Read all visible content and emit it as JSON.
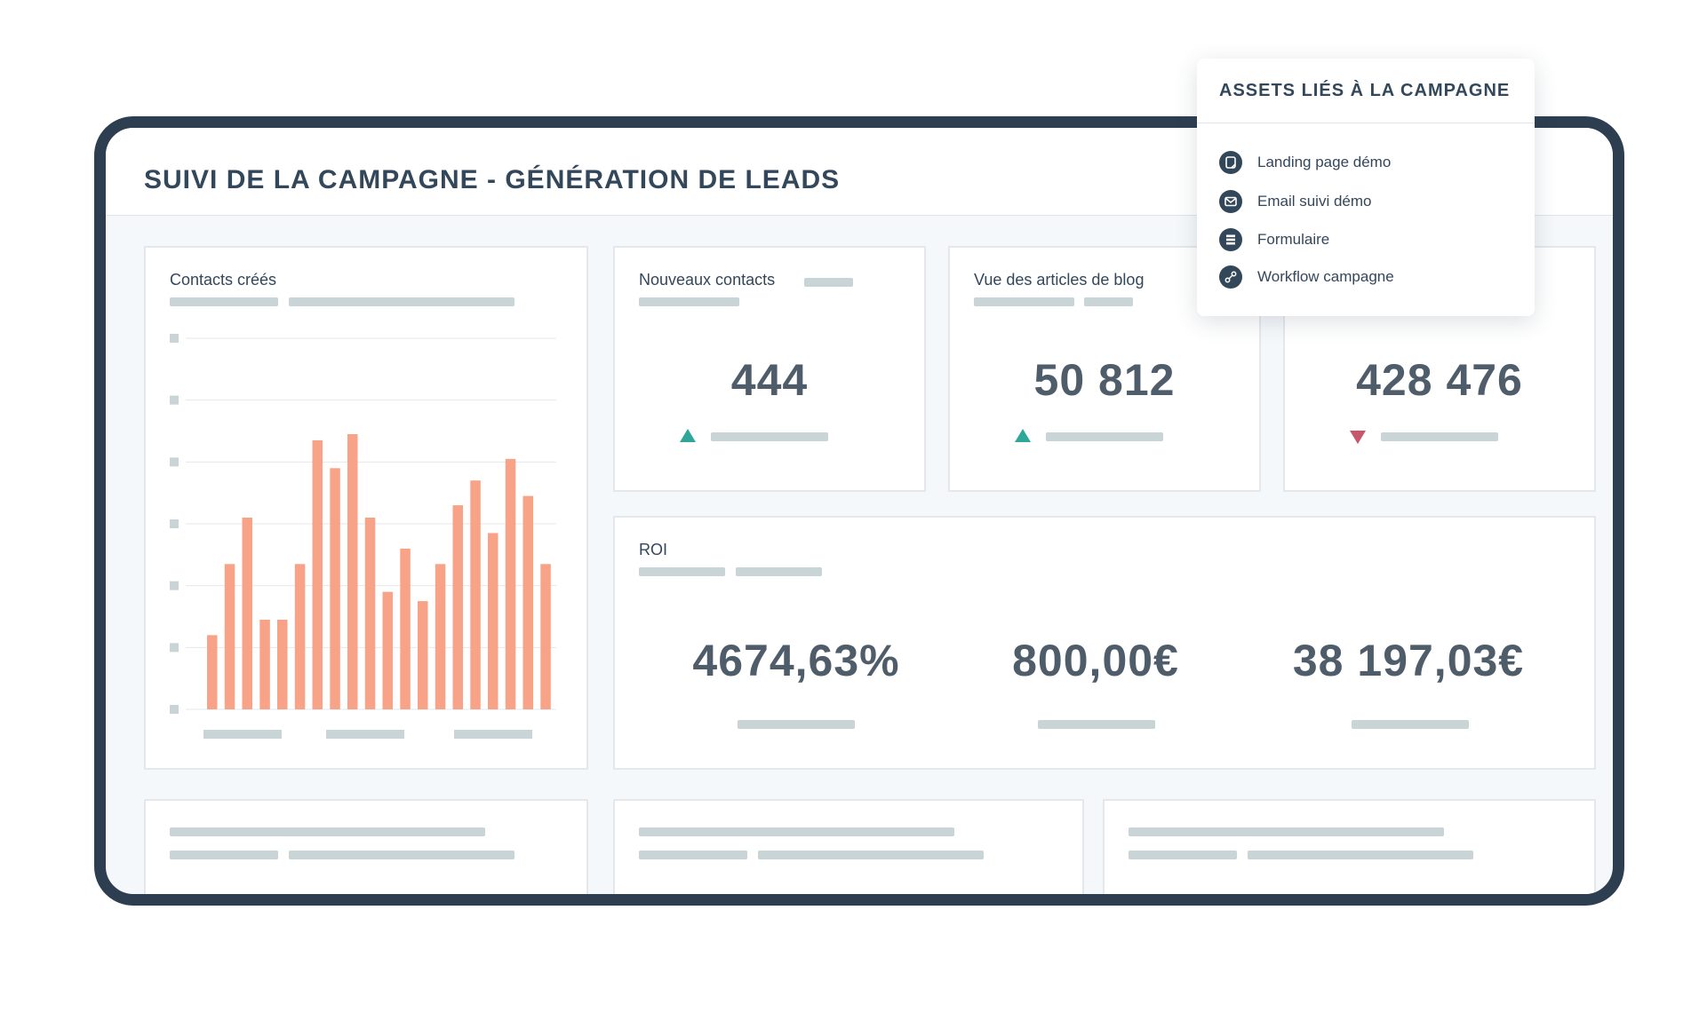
{
  "page": {
    "title": "SUIVI DE LA CAMPAGNE - GÉNÉRATION DE LEADS"
  },
  "cards": {
    "contacts_created": {
      "title": "Contacts créés"
    },
    "new_contacts": {
      "title": "Nouveaux contacts",
      "value": "444",
      "trend": "up"
    },
    "blog_views": {
      "title": "Vue des articles de blog",
      "value": "50 812",
      "trend": "up"
    },
    "third_metric": {
      "value": "428 476",
      "trend": "down"
    },
    "roi": {
      "title": "ROI",
      "values": [
        "4674,63%",
        "800,00€",
        "38 197,03€"
      ]
    }
  },
  "assets_popup": {
    "title": "ASSETS LIÉS À LA CAMPAGNE",
    "items": [
      {
        "label": "Landing page démo",
        "icon": "landing-page-icon"
      },
      {
        "label": "Email suivi démo",
        "icon": "email-icon"
      },
      {
        "label": "Formulaire",
        "icon": "form-icon"
      },
      {
        "label": "Workflow campagne",
        "icon": "workflow-icon"
      }
    ]
  },
  "colors": {
    "frame": "#2d3e50",
    "bar": "#f8a287",
    "trend_up": "#2ea69a",
    "trend_down": "#c8566a",
    "skeleton": "#c8d4d6"
  },
  "chart_data": {
    "type": "bar",
    "ylim": [
      0,
      6
    ],
    "values": [
      1.2,
      2.35,
      3.1,
      1.45,
      1.45,
      2.35,
      4.35,
      3.9,
      4.45,
      3.1,
      1.9,
      2.6,
      1.75,
      2.35,
      3.3,
      3.7,
      2.85,
      4.05,
      3.45,
      2.35
    ],
    "grid": true
  }
}
